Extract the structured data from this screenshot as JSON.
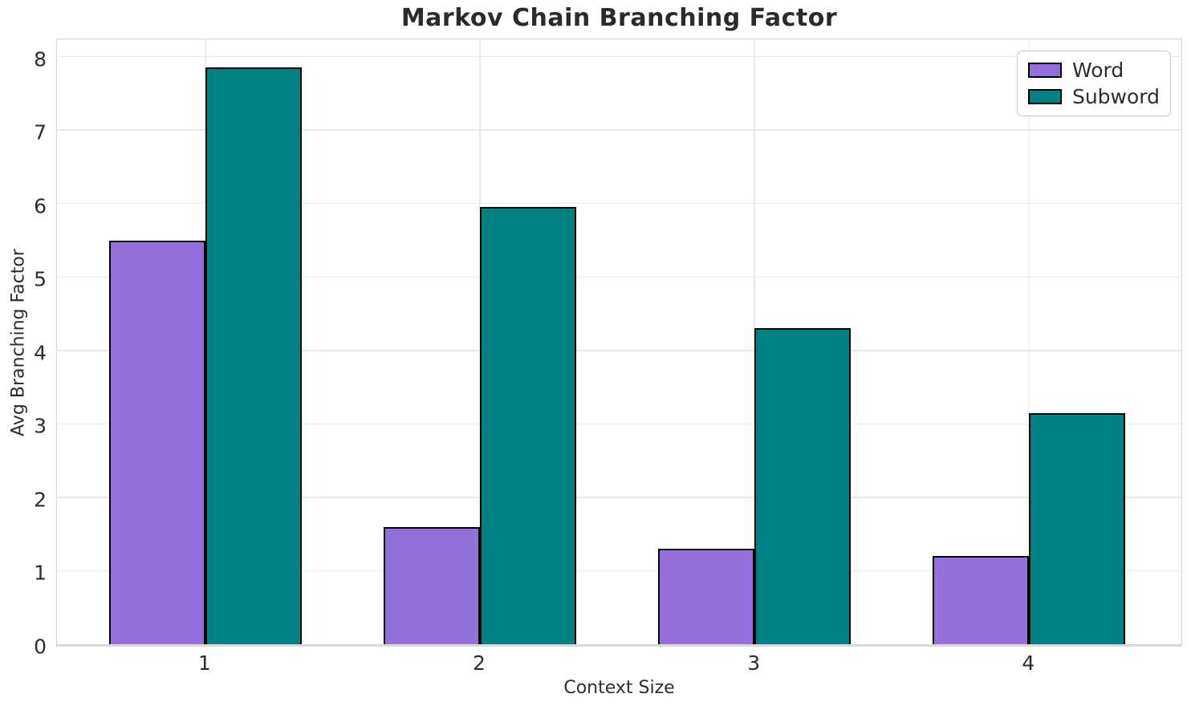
{
  "chart_data": {
    "type": "bar",
    "title": "Markov Chain Branching Factor",
    "xlabel": "Context Size",
    "ylabel": "Avg Branching Factor",
    "categories": [
      "1",
      "2",
      "3",
      "4"
    ],
    "series": [
      {
        "name": "Word",
        "color": "#9370DB",
        "values": [
          5.5,
          1.6,
          1.3,
          1.2
        ]
      },
      {
        "name": "Subword",
        "color": "#008080",
        "values": [
          7.85,
          5.95,
          4.3,
          3.15
        ]
      }
    ],
    "ylim": [
      0,
      8.28
    ],
    "yticks": [
      0,
      1,
      2,
      3,
      4,
      5,
      6,
      7,
      8
    ],
    "grid": true,
    "legend_position": "upper right",
    "bar_edge_color": "#000000",
    "colors": {
      "grid": "#eaeaea",
      "spine": "#d4d4d4",
      "text": "#2d2d2d",
      "title": "#2b2b2b"
    }
  }
}
